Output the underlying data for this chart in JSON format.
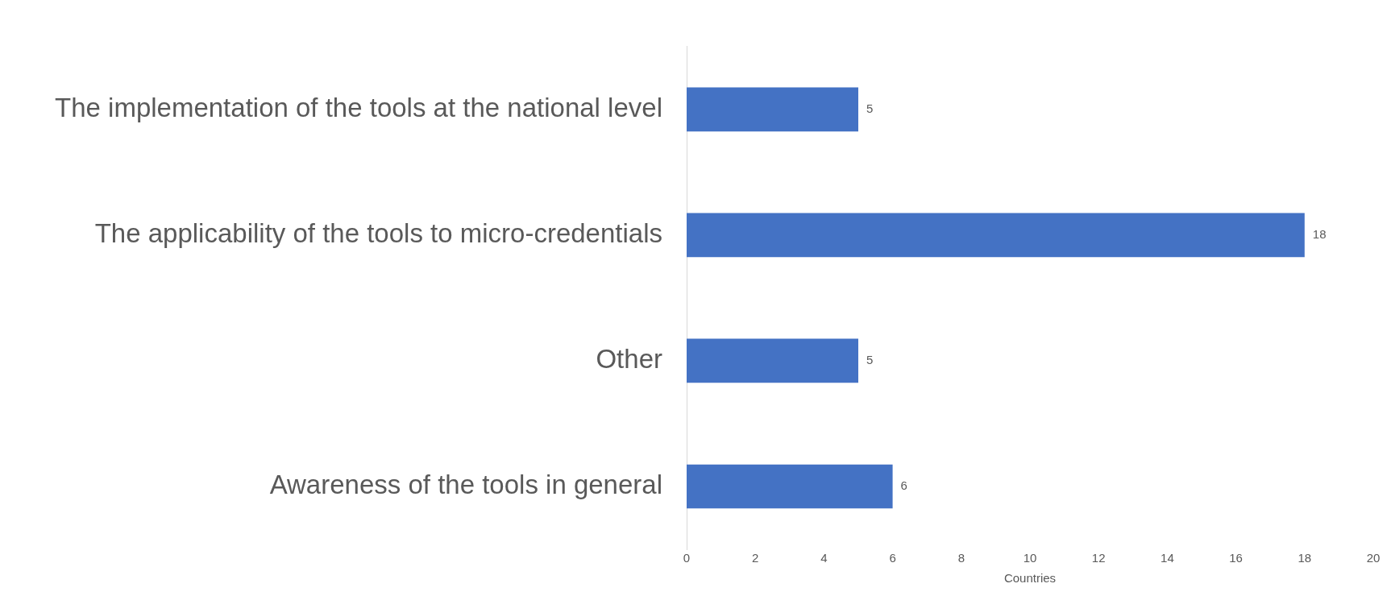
{
  "chart_data": {
    "type": "bar",
    "orientation": "horizontal",
    "xlabel": "Countries",
    "categories": [
      "The implementation of the tools at the national level",
      "The applicability of the tools to micro-credentials",
      "Other",
      "Awareness of the tools in general"
    ],
    "values": [
      5,
      18,
      5,
      6
    ],
    "color": "#4472c4",
    "xlim": [
      0,
      20
    ],
    "xticks": [
      0,
      2,
      4,
      6,
      8,
      10,
      12,
      14,
      16,
      18,
      20
    ],
    "data_labels": true,
    "grid": false,
    "legend": false
  }
}
